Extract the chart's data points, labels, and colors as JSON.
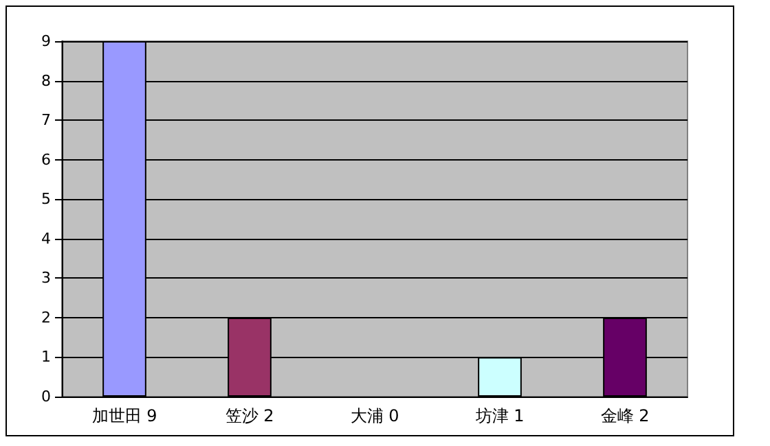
{
  "chart_data": {
    "type": "bar",
    "categories": [
      "加世田 9",
      "笠沙 2",
      "大浦 0",
      "坊津 1",
      "金峰 2"
    ],
    "values": [
      9,
      2,
      0,
      1,
      2
    ],
    "colors": [
      "#9999ff",
      "#993366",
      "#ffffcc",
      "#ccffff",
      "#660066"
    ],
    "ylim": [
      0,
      9
    ],
    "yticks": [
      0,
      1,
      2,
      3,
      4,
      5,
      6,
      7,
      8,
      9
    ],
    "grid": "y"
  }
}
